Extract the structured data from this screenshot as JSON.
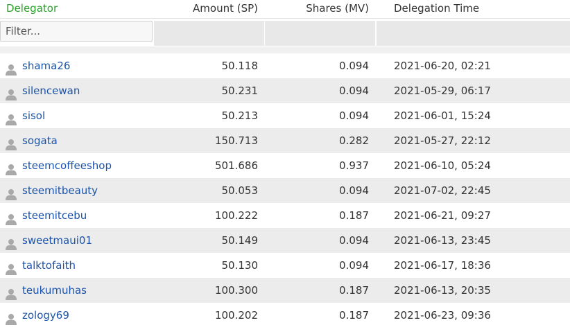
{
  "table": {
    "headers": {
      "delegator": "Delegator",
      "amount": "Amount (SP)",
      "shares": "Shares (MV)",
      "time": "Delegation Time"
    },
    "filter_placeholder": "Filter...",
    "rows": [
      {
        "user": "shama26",
        "amount": "50.118",
        "shares": "0.094",
        "time": "2021-06-20, 02:21"
      },
      {
        "user": "silencewan",
        "amount": "50.231",
        "shares": "0.094",
        "time": "2021-05-29, 06:17"
      },
      {
        "user": "sisol",
        "amount": "50.213",
        "shares": "0.094",
        "time": "2021-06-01, 15:24"
      },
      {
        "user": "sogata",
        "amount": "150.713",
        "shares": "0.282",
        "time": "2021-05-27, 22:12"
      },
      {
        "user": "steemcoffeeshop",
        "amount": "501.686",
        "shares": "0.937",
        "time": "2021-06-10, 05:24"
      },
      {
        "user": "steemitbeauty",
        "amount": "50.053",
        "shares": "0.094",
        "time": "2021-07-02, 22:45"
      },
      {
        "user": "steemitcebu",
        "amount": "100.222",
        "shares": "0.187",
        "time": "2021-06-21, 09:27"
      },
      {
        "user": "sweetmaui01",
        "amount": "50.149",
        "shares": "0.094",
        "time": "2021-06-13, 23:45"
      },
      {
        "user": "talktofaith",
        "amount": "50.130",
        "shares": "0.094",
        "time": "2021-06-17, 18:36"
      },
      {
        "user": "teukumuhas",
        "amount": "100.300",
        "shares": "0.187",
        "time": "2021-06-13, 20:35"
      },
      {
        "user": "zology69",
        "amount": "100.202",
        "shares": "0.187",
        "time": "2021-06-23, 09:36"
      }
    ]
  },
  "icons": {
    "user": "user-icon"
  },
  "colors": {
    "header_active": "#2aa02a",
    "link": "#1c53a8",
    "row_alt": "#ececec"
  }
}
